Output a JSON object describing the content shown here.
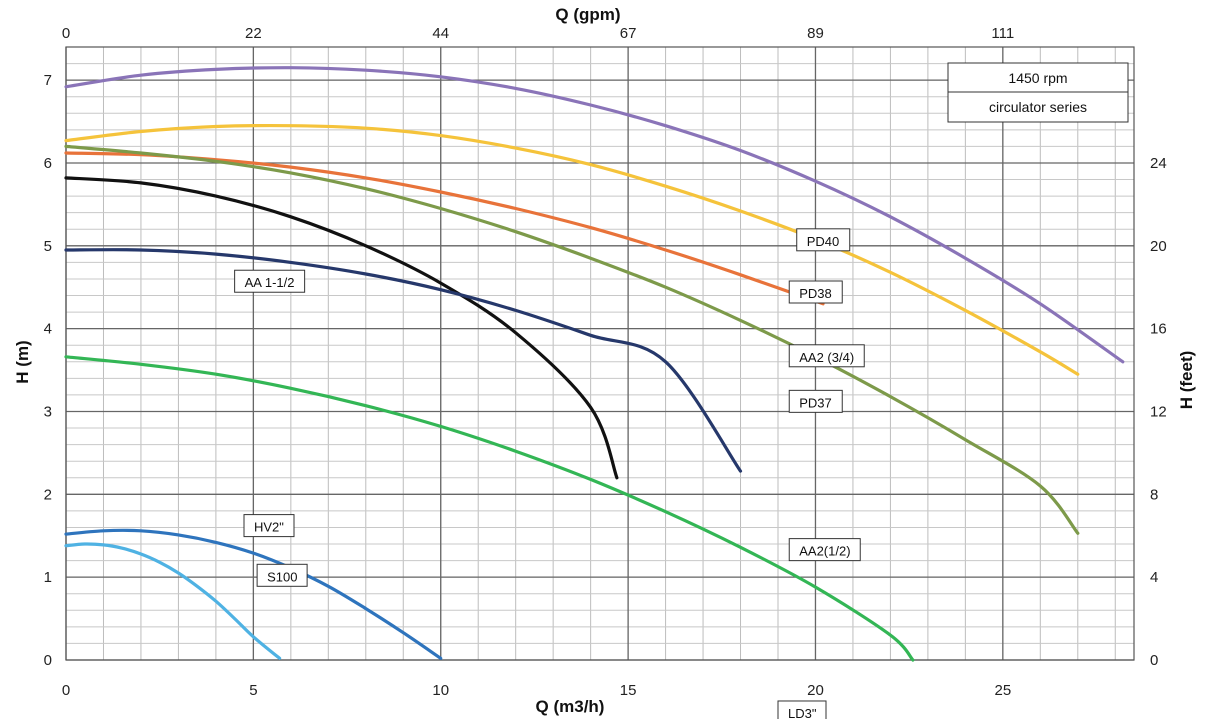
{
  "chart_data": {
    "type": "line",
    "title": "",
    "info_box": [
      "1450 rpm",
      "circulator series"
    ],
    "x_axis": {
      "label": "Q (m3/h)",
      "range": [
        0,
        28.5
      ],
      "ticks": [
        0,
        5,
        10,
        15,
        20,
        25
      ],
      "tick_labels": [
        "0",
        "5",
        "10",
        "15",
        "20",
        "25"
      ]
    },
    "y_axis": {
      "label": "H (m)",
      "range": [
        0,
        7.4
      ],
      "ticks": [
        0,
        1,
        2,
        3,
        4,
        5,
        6,
        7
      ],
      "tick_labels": [
        "0",
        "1",
        "2",
        "3",
        "4",
        "5",
        "6",
        "7"
      ]
    },
    "secondary_x_axis": {
      "label": "Q (gpm)",
      "tick_positions": [
        0,
        5,
        10,
        15,
        20,
        25
      ],
      "tick_labels": [
        "0",
        "22",
        "44",
        "67",
        "89",
        "111"
      ]
    },
    "secondary_y_axis": {
      "label": "H (feet)",
      "tick_positions": [
        0,
        1,
        2,
        3,
        4,
        5,
        6,
        7
      ],
      "tick_labels": [
        "0",
        "4",
        "8",
        "12",
        "16",
        "20",
        "24",
        ""
      ]
    },
    "grid": true,
    "series": [
      {
        "name": "PD40",
        "color": "#8a74b8",
        "label_at": [
          19.5,
          5.0
        ],
        "x": [
          0,
          2,
          4,
          6,
          8,
          10,
          12,
          14,
          16,
          18,
          20,
          22,
          24,
          26,
          28.2
        ],
        "y": [
          6.92,
          7.06,
          7.13,
          7.15,
          7.12,
          7.04,
          6.9,
          6.7,
          6.45,
          6.15,
          5.78,
          5.35,
          4.85,
          4.3,
          3.6
        ]
      },
      {
        "name": "PD38",
        "color": "#f5c33b",
        "label_at": [
          19.3,
          4.37
        ],
        "x": [
          0,
          2,
          4,
          6,
          8,
          10,
          12,
          14,
          16,
          18,
          20,
          22,
          24,
          26,
          27
        ],
        "y": [
          6.27,
          6.38,
          6.44,
          6.45,
          6.42,
          6.33,
          6.18,
          5.98,
          5.72,
          5.42,
          5.08,
          4.68,
          4.22,
          3.72,
          3.45
        ]
      },
      {
        "name": "AA2 (3/4)",
        "color": "#e8733a",
        "label_at": [
          19.3,
          3.6
        ],
        "x": [
          0,
          2,
          4,
          6,
          8,
          10,
          12,
          14,
          16,
          18,
          20.2
        ],
        "y": [
          6.12,
          6.1,
          6.04,
          5.95,
          5.82,
          5.65,
          5.45,
          5.22,
          4.95,
          4.65,
          4.3
        ]
      },
      {
        "name": "PD37",
        "color": "#7d9a4a",
        "label_at": [
          19.3,
          3.05
        ],
        "x": [
          0,
          2,
          4,
          6,
          8,
          10,
          12,
          14,
          16,
          18,
          20,
          22,
          24,
          26,
          27
        ],
        "y": [
          6.2,
          6.12,
          6.02,
          5.88,
          5.69,
          5.45,
          5.17,
          4.85,
          4.5,
          4.1,
          3.66,
          3.18,
          2.66,
          2.1,
          1.53
        ]
      },
      {
        "name": "AA 1-1/2",
        "color": "#111111",
        "label_at": [
          4.5,
          4.5
        ],
        "x": [
          0,
          2,
          4,
          6,
          8,
          10,
          12,
          14,
          14.7
        ],
        "y": [
          5.82,
          5.76,
          5.6,
          5.35,
          5.0,
          4.55,
          3.95,
          3.05,
          2.2
        ]
      },
      {
        "name": "AA2(1/2)",
        "color": "#26386b",
        "label_at": [
          19.3,
          1.26
        ],
        "x": [
          0,
          2,
          4,
          6,
          8,
          10,
          12,
          14,
          16,
          18
        ],
        "y": [
          4.95,
          4.95,
          4.9,
          4.8,
          4.66,
          4.47,
          4.22,
          3.92,
          3.6,
          2.28
        ]
      },
      {
        "name": "LD3\"",
        "color": "#33b655",
        "label_at": [
          19.0,
          -0.7
        ],
        "x": [
          0,
          2,
          4,
          6,
          8,
          10,
          12,
          14,
          16,
          18,
          20,
          22,
          22.6
        ],
        "y": [
          3.66,
          3.57,
          3.45,
          3.28,
          3.07,
          2.82,
          2.52,
          2.18,
          1.79,
          1.36,
          0.88,
          0.3,
          0.0
        ]
      },
      {
        "name": "HV2\"",
        "color": "#2e74bd",
        "label_at": [
          4.75,
          1.55
        ],
        "x": [
          0,
          1,
          2,
          3,
          4,
          5,
          6,
          7,
          8,
          9,
          10
        ],
        "y": [
          1.52,
          1.56,
          1.56,
          1.51,
          1.42,
          1.29,
          1.11,
          0.89,
          0.62,
          0.33,
          0.02
        ]
      },
      {
        "name": "S100",
        "color": "#4fb2e3",
        "label_at": [
          5.1,
          0.95
        ],
        "x": [
          0,
          0.5,
          1,
          1.5,
          2,
          2.5,
          3,
          3.5,
          4,
          4.5,
          5,
          5.7
        ],
        "y": [
          1.38,
          1.4,
          1.39,
          1.35,
          1.28,
          1.18,
          1.05,
          0.89,
          0.71,
          0.5,
          0.28,
          0.02
        ]
      }
    ]
  }
}
